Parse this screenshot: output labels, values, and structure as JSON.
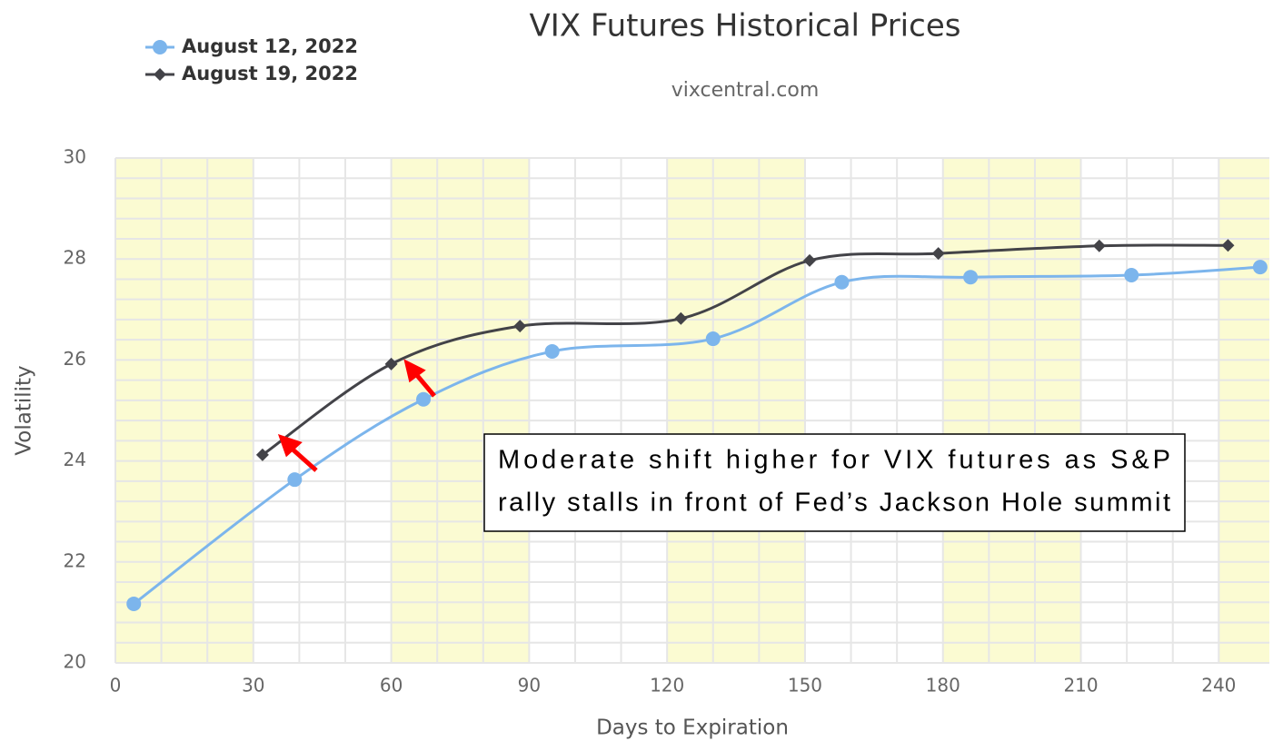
{
  "chart_data": {
    "type": "line",
    "title": "VIX Futures Historical Prices",
    "subtitle": "vixcentral.com",
    "x_label": "Days to Expiration",
    "y_label": "Volatility",
    "annotation": [
      "Moderate shift higher for VIX futures as S&P",
      "rally stalls in front of Fed’s Jackson Hole summit"
    ],
    "xlim": [
      0,
      251
    ],
    "xticks": [
      0,
      30,
      60,
      90,
      120,
      150,
      180,
      210,
      240
    ],
    "ylim": [
      20,
      30
    ],
    "yticks": [
      20,
      22,
      24,
      26,
      28,
      30
    ],
    "grid": true,
    "legend": "top-left",
    "series": [
      {
        "name": "August 12, 2022",
        "color": "#7cb5ec",
        "marker": "circle",
        "x": [
          4,
          39,
          67,
          95,
          130,
          158,
          186,
          221,
          249
        ],
        "values": [
          21.17,
          23.63,
          25.22,
          26.17,
          26.42,
          27.54,
          27.64,
          27.68,
          27.84
        ]
      },
      {
        "name": "August 19, 2022",
        "color": "#434348",
        "marker": "diamond",
        "x": [
          32,
          60,
          88,
          123,
          151,
          179,
          214,
          242
        ],
        "values": [
          24.12,
          25.92,
          26.67,
          26.82,
          27.97,
          28.11,
          28.26,
          28.27
        ]
      }
    ]
  }
}
